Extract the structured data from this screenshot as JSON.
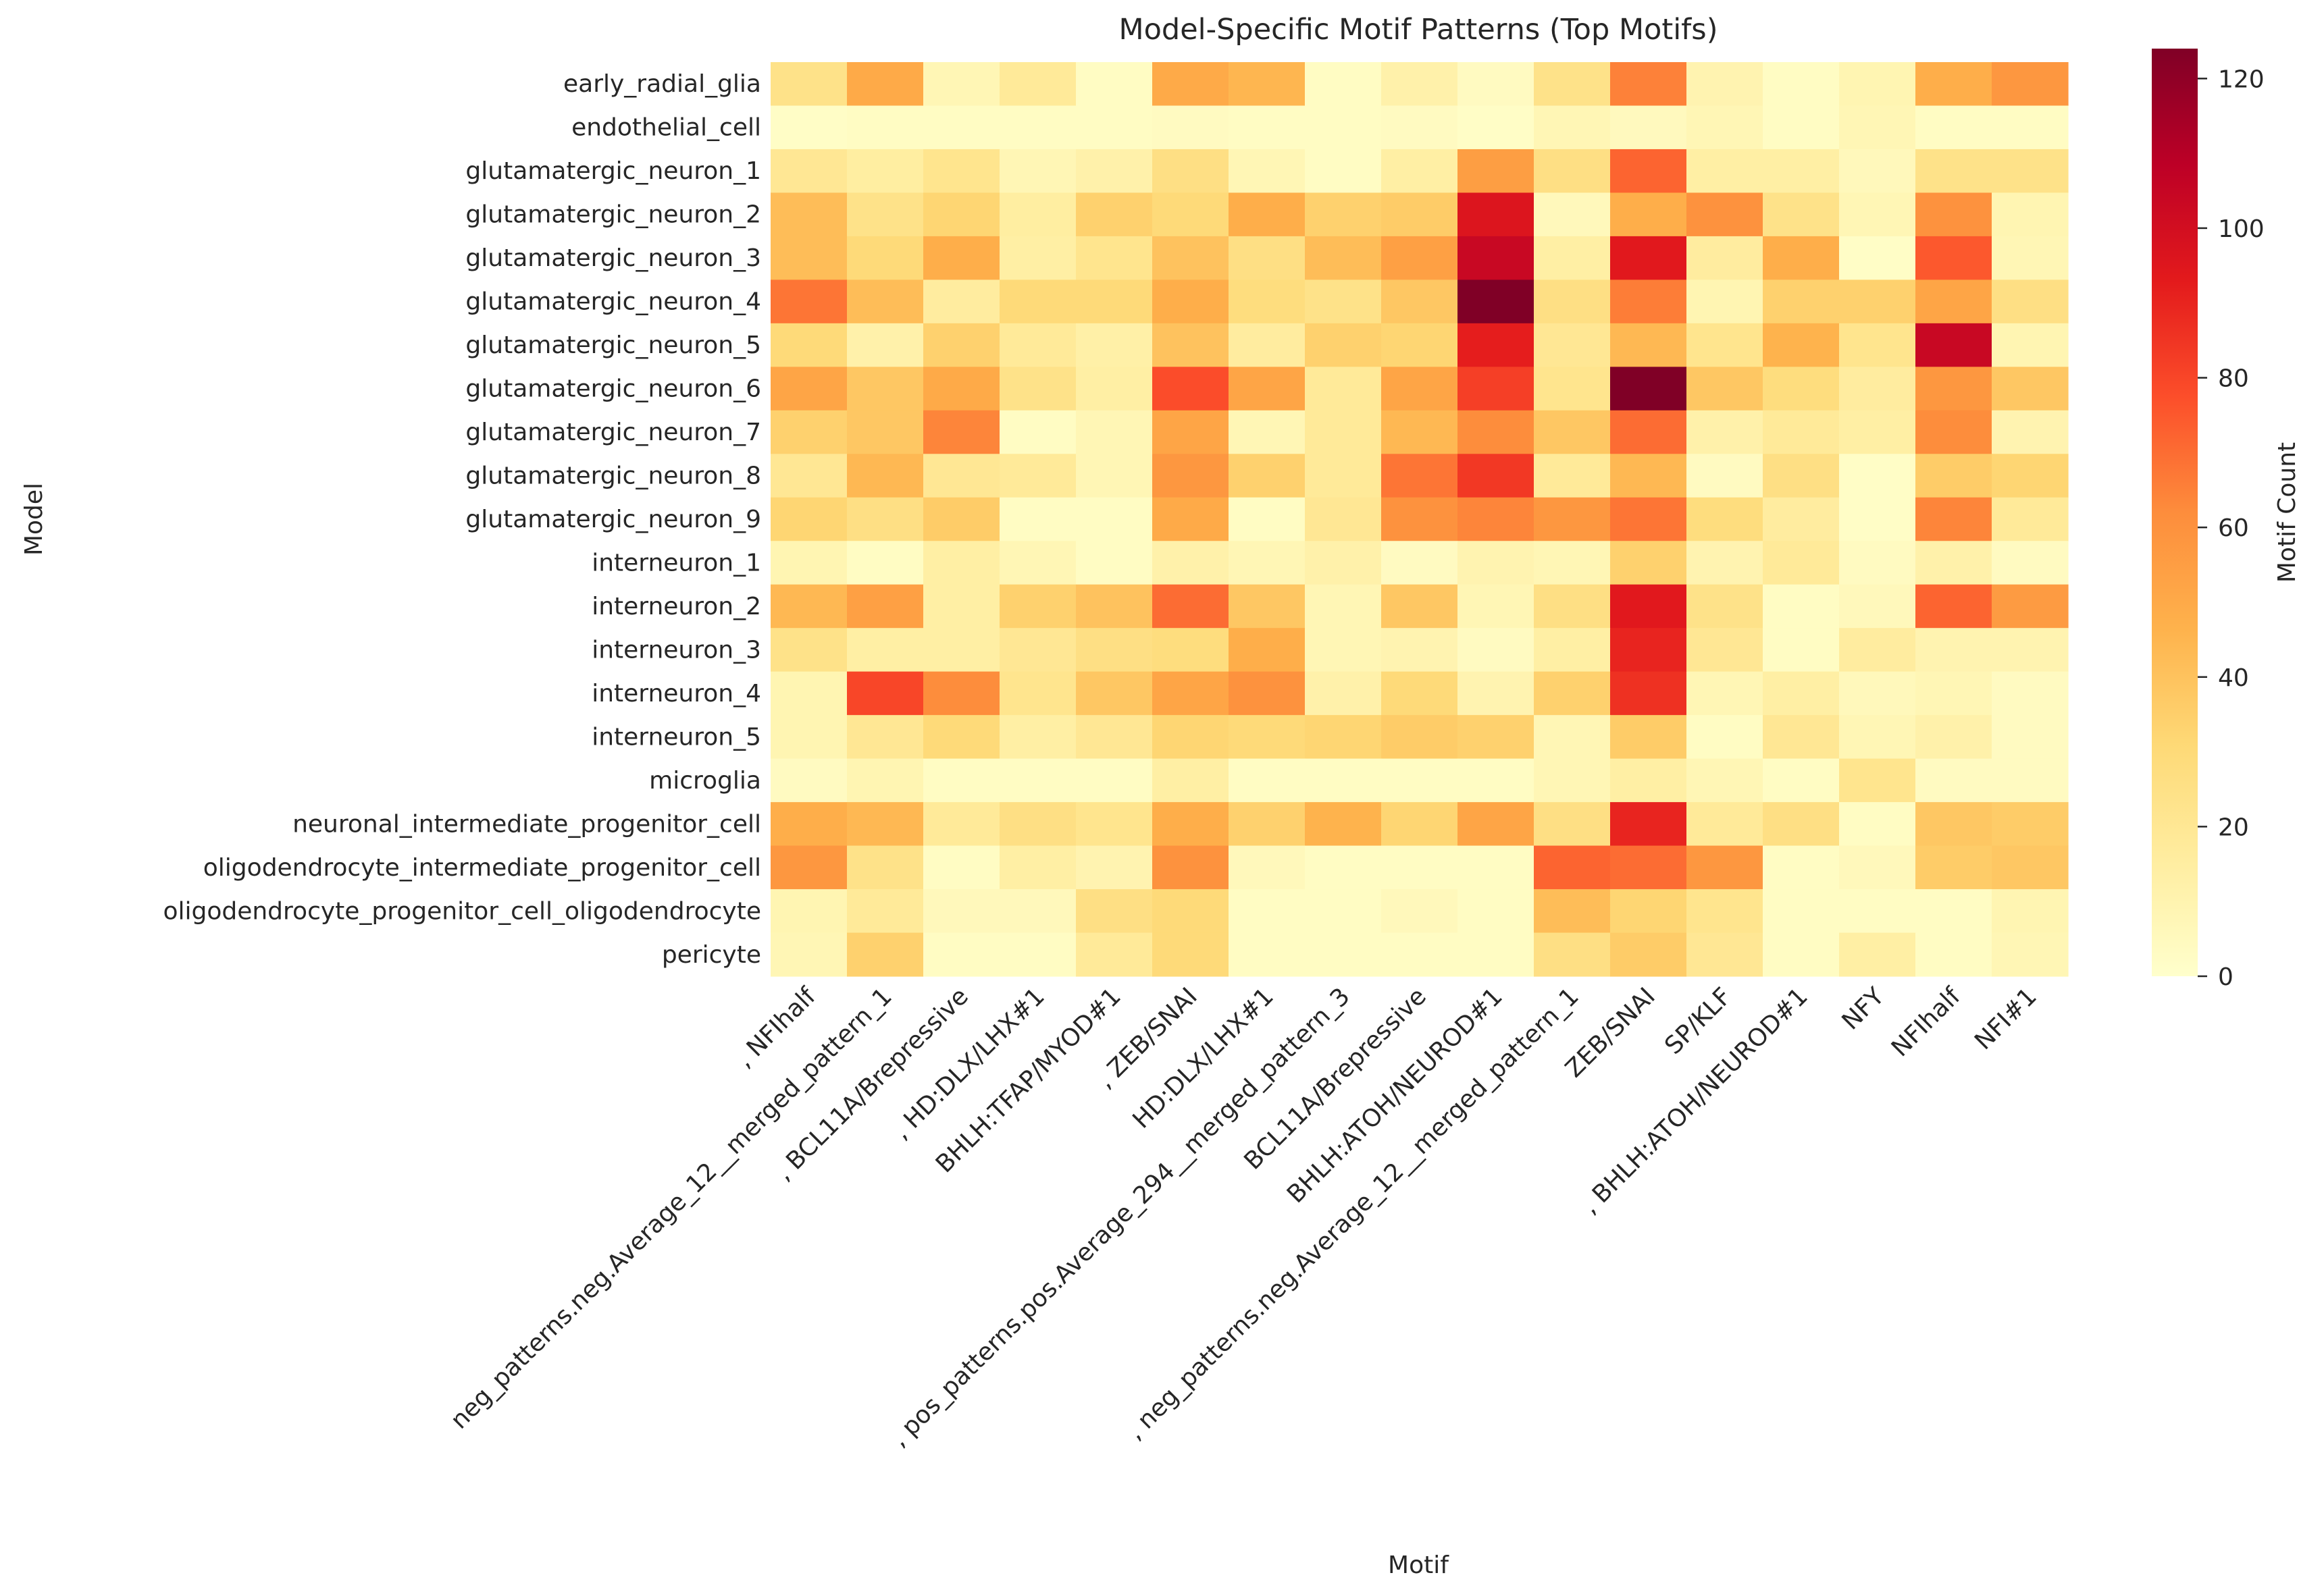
{
  "chart_data": {
    "type": "heatmap",
    "title": "Model-Specific Motif Patterns (Top Motifs)",
    "xlabel": "Motif",
    "ylabel": "Model",
    "colorbar": {
      "label": "Motif Count",
      "colormap": "YlOrRd",
      "vmin": 0,
      "vmax": 124,
      "ticks": [
        0,
        20,
        40,
        60,
        80,
        100,
        120
      ],
      "tick_labels": [
        "0",
        "20",
        "40",
        "60",
        "80",
        "100",
        "120"
      ]
    },
    "grid": false,
    "x_tick_labels": [
      ", NFIhalf",
      "neg_patterns.neg.Average_12__merged_pattern_1",
      ", BCL11A/Brepressive",
      ", HD:DLX/LHX#1",
      "BHLH:TFAP/MYOD#1",
      ", ZEB/SNAI",
      "HD:DLX/LHX#1",
      ", pos_patterns.pos.Average_294__merged_pattern_3",
      "BCL11A/Brepressive",
      "BHLH:ATOH/NEUROD#1",
      ", neg_patterns.neg.Average_12__merged_pattern_1",
      "ZEB/SNAI",
      "SP/KLF",
      ", BHLH:ATOH/NEUROD#1",
      "NFY",
      "NFIhalf",
      "NFI#1"
    ],
    "y_tick_labels": [
      "early_radial_glia",
      "endothelial_cell",
      "glutamatergic_neuron_1",
      "glutamatergic_neuron_2",
      "glutamatergic_neuron_3",
      "glutamatergic_neuron_4",
      "glutamatergic_neuron_5",
      "glutamatergic_neuron_6",
      "glutamatergic_neuron_7",
      "glutamatergic_neuron_8",
      "glutamatergic_neuron_9",
      "interneuron_1",
      "interneuron_2",
      "interneuron_3",
      "interneuron_4",
      "interneuron_5",
      "microglia",
      "neuronal_intermediate_progenitor_cell",
      "oligodendrocyte_intermediate_progenitor_cell",
      "oligodendrocyte_progenitor_cell_oligodendrocyte",
      "pericyte"
    ],
    "values": [
      [
        24,
        50,
        8,
        18,
        3,
        50,
        45,
        3,
        12,
        4,
        24,
        65,
        10,
        3,
        9,
        48,
        58
      ],
      [
        2,
        3,
        3,
        3,
        3,
        4,
        3,
        3,
        4,
        2,
        8,
        5,
        8,
        3,
        8,
        3,
        3
      ],
      [
        20,
        15,
        22,
        8,
        12,
        26,
        8,
        3,
        14,
        55,
        26,
        72,
        14,
        14,
        6,
        24,
        24
      ],
      [
        42,
        24,
        32,
        15,
        34,
        30,
        48,
        34,
        36,
        96,
        6,
        48,
        60,
        24,
        8,
        60,
        9
      ],
      [
        42,
        30,
        48,
        14,
        22,
        40,
        26,
        42,
        54,
        104,
        14,
        94,
        16,
        48,
        2,
        75,
        8
      ],
      [
        68,
        42,
        16,
        30,
        30,
        48,
        28,
        24,
        38,
        124,
        26,
        66,
        9,
        34,
        34,
        52,
        26
      ],
      [
        30,
        12,
        34,
        18,
        13,
        40,
        16,
        34,
        32,
        92,
        20,
        44,
        22,
        46,
        22,
        104,
        9
      ],
      [
        52,
        38,
        50,
        24,
        14,
        78,
        52,
        18,
        52,
        82,
        22,
        124,
        38,
        28,
        16,
        58,
        38
      ],
      [
        34,
        38,
        64,
        3,
        8,
        52,
        8,
        18,
        44,
        62,
        38,
        70,
        12,
        18,
        14,
        62,
        10
      ],
      [
        20,
        44,
        20,
        18,
        8,
        58,
        34,
        18,
        68,
        84,
        18,
        44,
        4,
        26,
        2,
        36,
        32
      ],
      [
        32,
        26,
        36,
        3,
        3,
        50,
        3,
        20,
        60,
        64,
        58,
        68,
        28,
        16,
        2,
        64,
        18
      ],
      [
        9,
        3,
        14,
        8,
        3,
        12,
        8,
        12,
        4,
        10,
        8,
        34,
        10,
        18,
        4,
        12,
        4
      ],
      [
        44,
        54,
        14,
        34,
        40,
        70,
        38,
        8,
        38,
        8,
        26,
        94,
        24,
        3,
        6,
        72,
        56
      ],
      [
        24,
        14,
        14,
        20,
        26,
        28,
        48,
        8,
        10,
        4,
        14,
        90,
        20,
        3,
        16,
        10,
        10
      ],
      [
        9,
        80,
        62,
        22,
        38,
        52,
        60,
        12,
        30,
        10,
        34,
        86,
        8,
        14,
        6,
        8,
        4
      ],
      [
        9,
        20,
        30,
        14,
        20,
        32,
        30,
        32,
        36,
        34,
        8,
        36,
        3,
        20,
        8,
        12,
        4
      ],
      [
        4,
        9,
        3,
        3,
        3,
        14,
        3,
        3,
        3,
        3,
        8,
        14,
        8,
        3,
        22,
        4,
        4
      ],
      [
        48,
        44,
        18,
        26,
        22,
        48,
        34,
        46,
        32,
        52,
        26,
        90,
        18,
        26,
        3,
        38,
        36
      ],
      [
        58,
        24,
        3,
        14,
        10,
        60,
        6,
        3,
        3,
        3,
        72,
        70,
        58,
        3,
        6,
        36,
        38
      ],
      [
        9,
        18,
        6,
        6,
        26,
        30,
        3,
        3,
        6,
        3,
        42,
        32,
        22,
        3,
        3,
        3,
        9
      ],
      [
        8,
        34,
        3,
        3,
        18,
        30,
        3,
        3,
        3,
        3,
        26,
        36,
        20,
        3,
        14,
        3,
        8
      ]
    ]
  }
}
